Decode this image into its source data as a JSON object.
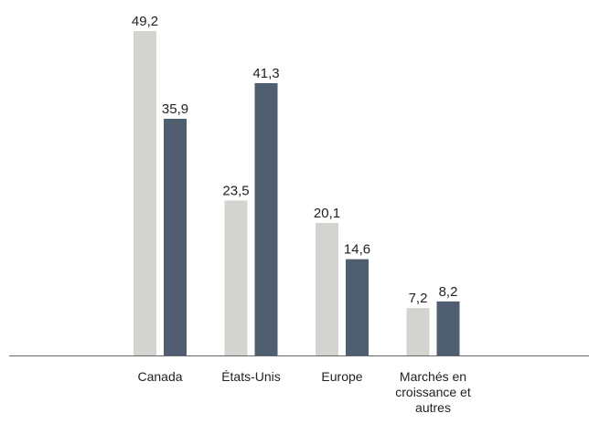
{
  "chart_data": {
    "type": "bar",
    "categories": [
      "Canada",
      "États-Unis",
      "Europe",
      "Marchés en croissance et autres"
    ],
    "series": [
      {
        "color": "#d3d3cf",
        "values": [
          49.2,
          23.5,
          20.1,
          7.2
        ],
        "value_labels": [
          "49,2",
          "23,5",
          "20,1",
          "7,2"
        ]
      },
      {
        "color": "#4f5e70",
        "values": [
          35.9,
          41.3,
          14.6,
          8.2
        ],
        "value_labels": [
          "35,9",
          "41,3",
          "14,6",
          "8,2"
        ]
      }
    ]
  }
}
